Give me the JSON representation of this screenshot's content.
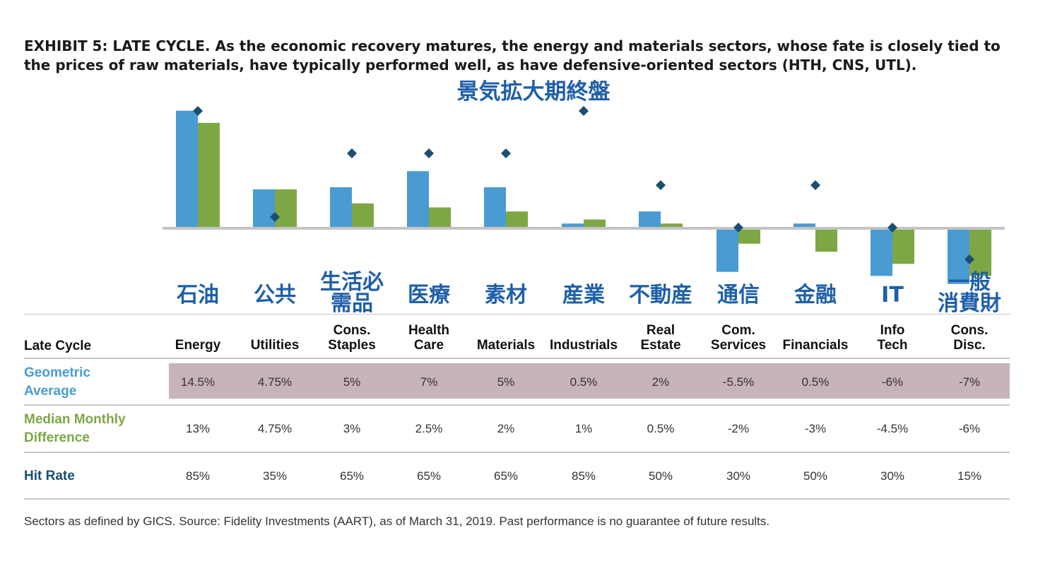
{
  "title": "EXHIBIT 5: LATE CYCLE. As the economic recovery matures, the energy and materials sectors, whose fate is closely tied to the prices of raw materials, have typically performed well, as have defensive-oriented sectors (HTH, CNS, UTL).",
  "jp_title": "景気拡大期終盤",
  "colors": {
    "geometric": "#4a9bd1",
    "median": "#7da745",
    "hit_marker": "#1b4f72",
    "jp_text": "#1f5fa8",
    "highlight_row": "#c7b3ba"
  },
  "table": {
    "row_header_label": "Late Cycle",
    "rows": [
      {
        "label": "Geometric Average",
        "color": "#4a9bd1",
        "values": [
          "14.5%",
          "4.75%",
          "5%",
          "7%",
          "5%",
          "0.5%",
          "2%",
          "-5.5%",
          "0.5%",
          "-6%",
          "-7%"
        ]
      },
      {
        "label": "Median Monthly Difference",
        "color": "#7da745",
        "values": [
          "13%",
          "4.75%",
          "3%",
          "2.5%",
          "2%",
          "1%",
          "0.5%",
          "-2%",
          "-3%",
          "-4.5%",
          "-6%"
        ]
      },
      {
        "label": "Hit Rate",
        "color": "#1b4f72",
        "values": [
          "85%",
          "35%",
          "65%",
          "65%",
          "65%",
          "85%",
          "50%",
          "30%",
          "50%",
          "30%",
          "15%"
        ]
      }
    ]
  },
  "chart_data": {
    "type": "bar",
    "categories": [
      "Energy",
      "Utilities",
      "Cons. Staples",
      "Health Care",
      "Materials",
      "Industrials",
      "Real Estate",
      "Com. Services",
      "Financials",
      "Info Tech",
      "Cons. Disc."
    ],
    "category_lines": [
      [
        "Energy"
      ],
      [
        "Utilities"
      ],
      [
        "Cons.",
        "Staples"
      ],
      [
        "Health",
        "Care"
      ],
      [
        "Materials"
      ],
      [
        "Industrials"
      ],
      [
        "Real",
        "Estate"
      ],
      [
        "Com.",
        "Services"
      ],
      [
        "Financials"
      ],
      [
        "Info",
        "Tech"
      ],
      [
        "Cons.",
        "Disc."
      ]
    ],
    "jp_labels": [
      "石油",
      "公共",
      "生活必需品",
      "医療",
      "素材",
      "産業",
      "不動産",
      "通信",
      "金融",
      "IT",
      "一般消費財"
    ],
    "jp_label_lines": [
      [
        "石油"
      ],
      [
        "公共"
      ],
      [
        "生活必",
        "需品"
      ],
      [
        "医療"
      ],
      [
        "素材"
      ],
      [
        "産業"
      ],
      [
        "不動産"
      ],
      [
        "通信"
      ],
      [
        "金融"
      ],
      [
        "IT"
      ],
      [
        "一般",
        "消費財"
      ]
    ],
    "series": [
      {
        "name": "Geometric Average",
        "type": "bar",
        "color": "#4a9bd1",
        "values": [
          14.5,
          4.75,
          5,
          7,
          5,
          0.5,
          2,
          -5.5,
          0.5,
          -6,
          -7
        ]
      },
      {
        "name": "Median Monthly Difference",
        "type": "bar",
        "color": "#7da745",
        "values": [
          13,
          4.75,
          3,
          2.5,
          2,
          1,
          0.5,
          -2,
          -3,
          -4.5,
          -6
        ]
      },
      {
        "name": "Hit Rate",
        "type": "marker",
        "color": "#1b4f72",
        "values": [
          85,
          35,
          65,
          65,
          65,
          85,
          50,
          30,
          50,
          30,
          15
        ]
      }
    ],
    "baseline_hit_rate": 30,
    "grid": false
  },
  "footnote": "Sectors as defined by GICS. Source: Fidelity Investments (AART), as of March 31, 2019. Past performance is no guarantee of future results."
}
